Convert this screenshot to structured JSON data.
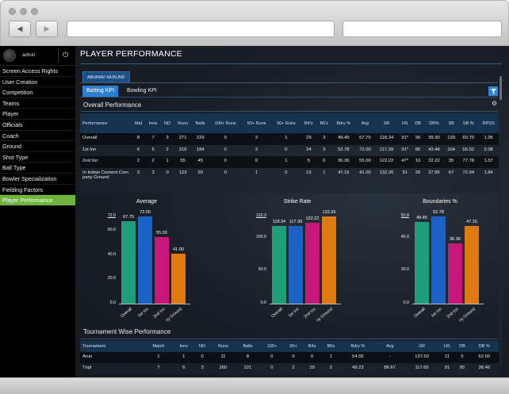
{
  "browser": {
    "back_icon": "◀",
    "forward_icon": "▶",
    "url_value": "",
    "search_value": ""
  },
  "sidebar": {
    "user": {
      "name": "admin",
      "power_icon": "⏻"
    },
    "items": [
      {
        "label": "Screen Access Rights",
        "active": false
      },
      {
        "label": "User Creation",
        "active": false
      },
      {
        "label": "Competition",
        "active": false
      },
      {
        "label": "Teams",
        "active": false
      },
      {
        "label": "Player",
        "active": false
      },
      {
        "label": "Officials",
        "active": false
      },
      {
        "label": "Coach",
        "active": false
      },
      {
        "label": "Ground",
        "active": false
      },
      {
        "label": "Shot Type",
        "active": false
      },
      {
        "label": "Ball Type",
        "active": false
      },
      {
        "label": "Bowler Specialization",
        "active": false
      },
      {
        "label": "Fielding Factors",
        "active": false
      },
      {
        "label": "Player Performance",
        "active": true
      }
    ]
  },
  "main": {
    "title": "PLAYER PERFORMANCE",
    "player_tab": "ABHINAV MUKUND",
    "kpi_tabs": [
      {
        "label": "Batting KPI",
        "active": true
      },
      {
        "label": "Bowling KPI",
        "active": false
      }
    ],
    "filter_icon": "filter",
    "overall": {
      "title": "Overall Performance",
      "gear_icon": "⚙",
      "headers": [
        "Performance",
        "Mat",
        "Inns",
        "NO",
        "Runs",
        "Balls",
        "100+ Runs",
        "50+ Runs",
        "30+ Runs",
        "B4's",
        "B6's",
        "Bdry %",
        "Avg",
        "SR",
        "HS",
        "DB",
        "DB%",
        "SB",
        "SB %",
        "RPSS"
      ],
      "rows": [
        [
          "Overall",
          "8",
          "7",
          "3",
          "271",
          "229",
          "0",
          "2",
          "1",
          "29",
          "3",
          "49.45",
          "67.75",
          "118.34",
          "91*",
          "90",
          "39.30",
          "139",
          "60.70",
          "1.95"
        ],
        [
          "1st Inn",
          "6",
          "5",
          "2",
          "216",
          "184",
          "0",
          "2",
          "0",
          "24",
          "3",
          "52.78",
          "72.00",
          "117.39",
          "91*",
          "80",
          "43.48",
          "104",
          "56.52",
          "2.08"
        ],
        [
          "2nd Inn",
          "2",
          "2",
          "1",
          "55",
          "45",
          "0",
          "0",
          "1",
          "5",
          "0",
          "36.36",
          "55.00",
          "122.22",
          "47*",
          "10",
          "22.22",
          "35",
          "77.78",
          "1.57"
        ],
        [
          "In Indian Cement Company Ground",
          "3",
          "3",
          "0",
          "123",
          "93",
          "0",
          "1",
          "0",
          "13",
          "1",
          "47.15",
          "41.00",
          "132.26",
          "91",
          "26",
          "27.96",
          "67",
          "72.04",
          "1.84"
        ]
      ]
    },
    "tournament": {
      "title": "Tournament Wise Performance",
      "headers": [
        "Tournament",
        "Match",
        "Inns",
        "NO",
        "Runs",
        "Balls",
        "100+",
        "50+",
        "B4s",
        "B6s",
        "Bdry %",
        "Avg",
        "SR",
        "HS",
        "DB",
        "DB %"
      ],
      "rows": [
        [
          "Arun",
          "1",
          "1",
          "0",
          "11",
          "8",
          "0",
          "0",
          "0",
          "1",
          "54.55",
          "-",
          "137.50",
          "11",
          "5",
          "62.50"
        ],
        [
          "Tnpl",
          "7",
          "6",
          "3",
          "260",
          "221",
          "0",
          "2",
          "29",
          "2",
          "49.23",
          "86.67",
          "117.65",
          "91",
          "85",
          "38.46"
        ]
      ]
    }
  },
  "chart_data": [
    {
      "type": "bar",
      "title": "Average",
      "categories": [
        "Overall",
        "1st Inn",
        "2nd Inn",
        "In Indian Cement Company Ground"
      ],
      "category_labels_visible": [
        "Overall",
        "1st Inn",
        "2nd Inn",
        "ny Ground"
      ],
      "values": [
        67.75,
        72.0,
        55.0,
        41.0
      ],
      "value_labels": [
        "67.75",
        "72.00",
        "55.00",
        "41.00"
      ],
      "colors": [
        "#1f9e7a",
        "#1a63c4",
        "#c8177a",
        "#de7a10"
      ],
      "yticks": [
        "0.0",
        "20.0",
        "40.0",
        "60.0",
        "72.0"
      ],
      "ylim": [
        0,
        72.0
      ],
      "xlabel": "",
      "ylabel": ""
    },
    {
      "type": "bar",
      "title": "Strike Rate",
      "categories": [
        "Overall",
        "1st Inn",
        "2nd Inn",
        "In Indian Cement Company Ground"
      ],
      "category_labels_visible": [
        "Overall",
        "1st Inn",
        "2nd Inn",
        "ny Ground"
      ],
      "values": [
        118.34,
        117.39,
        122.22,
        132.26
      ],
      "value_labels": [
        "118.34",
        "117.39",
        "122.22",
        "132.26"
      ],
      "colors": [
        "#1f9e7a",
        "#1a63c4",
        "#c8177a",
        "#de7a10"
      ],
      "yticks": [
        "0.0",
        "50.0",
        "100.0",
        "132.3"
      ],
      "ylim": [
        0,
        132.3
      ],
      "xlabel": "",
      "ylabel": ""
    },
    {
      "type": "bar",
      "title": "Boundaries %",
      "categories": [
        "Overall",
        "1st Inn",
        "2nd Inn",
        "In Indian Cement Company Ground"
      ],
      "category_labels_visible": [
        "Overall",
        "1st Inn",
        "2nd Inn",
        "ny Ground"
      ],
      "values": [
        49.45,
        52.78,
        36.36,
        47.15
      ],
      "value_labels": [
        "49.45",
        "52.78",
        "36.36",
        "47.15"
      ],
      "colors": [
        "#1f9e7a",
        "#1a63c4",
        "#c8177a",
        "#de7a10"
      ],
      "yticks": [
        "0.0",
        "20.0",
        "40.0",
        "52.8"
      ],
      "ylim": [
        0,
        52.8
      ],
      "xlabel": "",
      "ylabel": ""
    }
  ]
}
